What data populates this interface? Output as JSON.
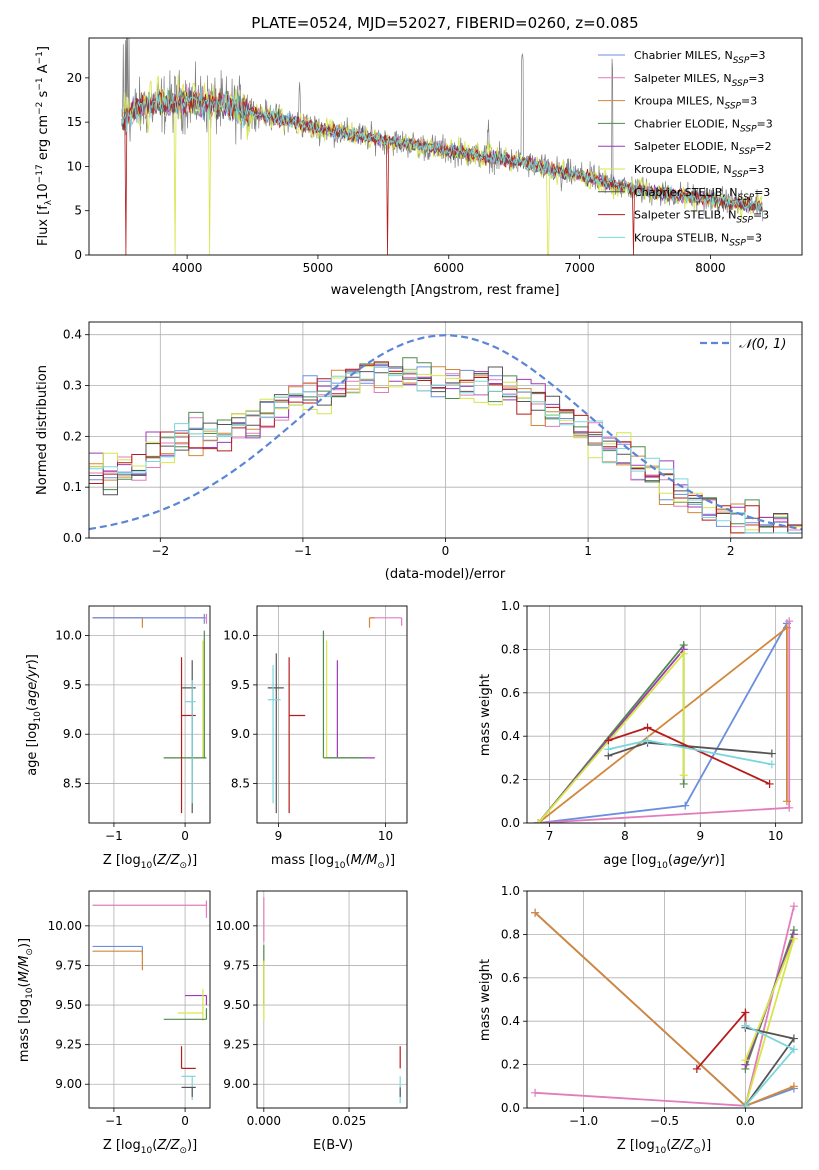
{
  "colors": {
    "c_ch_miles": "#6b8fe0",
    "c_sa_miles": "#e37bbd",
    "c_kr_miles": "#d2873a",
    "c_ch_elodie": "#4f8a4f",
    "c_sa_elodie": "#9b3cb5",
    "c_kr_elodie": "#d6e64a",
    "c_ch_stelib": "#555555",
    "c_sa_stelib": "#b51d1d",
    "c_kr_stelib": "#79d6dd",
    "data": "#808080",
    "normal": "#5b85d6"
  },
  "chart_data": [
    {
      "id": "spectrum",
      "type": "line",
      "title": "PLATE=0524, MJD=52027, FIBERID=0260, z=0.085",
      "xlabel": "wavelength [Angstrom, rest frame]",
      "ylabel": "Flux [fλ10⁻¹⁷ erg cm⁻² s⁻¹ A⁻¹]",
      "xlim": [
        3250,
        8700
      ],
      "ylim": [
        0,
        24.5
      ],
      "xticks": [
        4000,
        5000,
        6000,
        7000,
        8000
      ],
      "yticks": [
        0,
        5,
        10,
        15,
        20
      ],
      "legend_position": "upper right",
      "legend": [
        "Chabrier MILES, N_SSP=3",
        "Salpeter MILES, N_SSP=3",
        "Kroupa MILES, N_SSP=3",
        "Chabrier ELODIE, N_SSP=3",
        "Salpeter ELODIE, N_SSP=2",
        "Kroupa ELODIE, N_SSP=3",
        "Chabrier STELIB, N_SSP=3",
        "Salpeter STELIB, N_SSP=3",
        "Kroupa STELIB, N_SSP=3"
      ],
      "continuum": [
        [
          3500,
          15.5
        ],
        [
          3700,
          16.8
        ],
        [
          4000,
          17.5
        ],
        [
          4500,
          16.2
        ],
        [
          5000,
          14.3
        ],
        [
          5500,
          13.0
        ],
        [
          6000,
          11.8
        ],
        [
          6500,
          10.6
        ],
        [
          7000,
          8.9
        ],
        [
          7500,
          7.2
        ],
        [
          8000,
          6.3
        ],
        [
          8400,
          5.4
        ]
      ]
    },
    {
      "id": "residuals",
      "type": "line",
      "xlabel": "(data-model)/error",
      "ylabel": "Normed distribution",
      "xlim": [
        -2.5,
        2.5
      ],
      "ylim": [
        0,
        0.425
      ],
      "xticks": [
        -2,
        -1,
        0,
        1,
        2
      ],
      "yticks": [
        0.0,
        0.1,
        0.2,
        0.3,
        0.4
      ],
      "legend": [
        "𝒩(0, 1)"
      ],
      "bins": 50,
      "hist_envelope": [
        0.13,
        0.12,
        0.14,
        0.15,
        0.16,
        0.17,
        0.19,
        0.2,
        0.2,
        0.21,
        0.22,
        0.23,
        0.25,
        0.26,
        0.27,
        0.28,
        0.29,
        0.3,
        0.31,
        0.32,
        0.33,
        0.33,
        0.32,
        0.32,
        0.31,
        0.31,
        0.3,
        0.3,
        0.29,
        0.29,
        0.28,
        0.27,
        0.25,
        0.24,
        0.22,
        0.2,
        0.18,
        0.17,
        0.15,
        0.13,
        0.11,
        0.09,
        0.08,
        0.06,
        0.05,
        0.04,
        0.03,
        0.03,
        0.025,
        0.02
      ]
    },
    {
      "id": "age_vs_z",
      "type": "scatter",
      "xlabel": "Z [log₁₀(Z/Z⊙)]",
      "ylabel": "age  [log₁₀(age/yr)]",
      "xlim": [
        -1.35,
        0.35
      ],
      "ylim": [
        8.1,
        10.3
      ],
      "xticks": [
        -1,
        0
      ],
      "yticks": [
        8.5,
        9.0,
        9.5,
        10.0
      ]
    },
    {
      "id": "age_vs_mass",
      "type": "scatter",
      "xlabel": "mass [log₁₀(M/M⊙)]",
      "ylabel": "",
      "xlim": [
        8.8,
        10.2
      ],
      "ylim": [
        8.1,
        10.3
      ],
      "xticks": [
        9,
        10
      ],
      "yticks": [
        8.5,
        9.0,
        9.5,
        10.0
      ]
    },
    {
      "id": "weight_vs_age",
      "type": "line",
      "xlabel": "age  [log₁₀(age/yr)]",
      "ylabel": "mass weight",
      "xlim": [
        6.7,
        10.35
      ],
      "ylim": [
        0,
        1.0
      ],
      "xticks": [
        7,
        8,
        9,
        10
      ],
      "yticks": [
        0.0,
        0.2,
        0.4,
        0.6,
        0.8,
        1.0
      ],
      "series": [
        {
          "color": "c_ch_miles",
          "x": [
            6.85,
            8.8,
            10.15
          ],
          "y": [
            0.0,
            0.08,
            0.92
          ]
        },
        {
          "color": "c_sa_miles",
          "x": [
            6.85,
            10.18,
            10.18
          ],
          "y": [
            0.0,
            0.07,
            0.93
          ]
        },
        {
          "color": "c_kr_miles",
          "x": [
            6.85,
            10.15,
            10.15
          ],
          "y": [
            0.0,
            0.9,
            0.1
          ]
        },
        {
          "color": "c_ch_elodie",
          "x": [
            6.85,
            8.78,
            8.78
          ],
          "y": [
            0.0,
            0.82,
            0.18
          ]
        },
        {
          "color": "c_sa_elodie",
          "x": [
            6.85,
            8.78
          ],
          "y": [
            0.0,
            0.8
          ]
        },
        {
          "color": "c_kr_elodie",
          "x": [
            6.85,
            8.78,
            8.78
          ],
          "y": [
            0.0,
            0.78,
            0.22
          ]
        },
        {
          "color": "c_ch_stelib",
          "x": [
            7.78,
            8.3,
            9.95
          ],
          "y": [
            0.31,
            0.37,
            0.32
          ]
        },
        {
          "color": "c_sa_stelib",
          "x": [
            7.78,
            8.3,
            9.92
          ],
          "y": [
            0.38,
            0.44,
            0.18
          ]
        },
        {
          "color": "c_kr_stelib",
          "x": [
            7.78,
            8.3,
            9.95
          ],
          "y": [
            0.34,
            0.38,
            0.27
          ]
        }
      ]
    },
    {
      "id": "mass_vs_z",
      "type": "scatter",
      "xlabel": "Z [log₁₀(Z/Z⊙)]",
      "ylabel": "mass [log₁₀(M/M⊙)]",
      "xlim": [
        -1.35,
        0.35
      ],
      "ylim": [
        8.85,
        10.22
      ],
      "xticks": [
        -1,
        0
      ],
      "yticks": [
        9.0,
        9.25,
        9.5,
        9.75,
        10.0
      ]
    },
    {
      "id": "mass_vs_ebv",
      "type": "scatter",
      "xlabel": "E(B-V)",
      "ylabel": "",
      "xlim": [
        -0.002,
        0.042
      ],
      "ylim": [
        8.85,
        10.22
      ],
      "xticks": [
        0.0,
        0.025
      ],
      "yticks": [
        9.0,
        9.25,
        9.5,
        9.75,
        10.0
      ]
    },
    {
      "id": "weight_vs_z",
      "type": "line",
      "xlabel": "Z [log₁₀(Z/Z⊙)]",
      "ylabel": "mass weight",
      "xlim": [
        -1.35,
        0.35
      ],
      "ylim": [
        0,
        1.0
      ],
      "xticks": [
        -1.0,
        -0.5,
        0.0
      ],
      "yticks": [
        0.0,
        0.2,
        0.4,
        0.6,
        0.8,
        1.0
      ],
      "series": [
        {
          "color": "c_ch_miles",
          "x": [
            -1.3,
            0.0,
            0.3
          ],
          "y": [
            0.9,
            0.01,
            0.09
          ]
        },
        {
          "color": "c_sa_miles",
          "x": [
            -1.3,
            0.0,
            0.3
          ],
          "y": [
            0.07,
            0.01,
            0.93
          ]
        },
        {
          "color": "c_kr_miles",
          "x": [
            -1.3,
            0.0,
            0.3
          ],
          "y": [
            0.9,
            0.01,
            0.1
          ]
        },
        {
          "color": "c_ch_elodie",
          "x": [
            0.0,
            0.3
          ],
          "y": [
            0.18,
            0.82
          ]
        },
        {
          "color": "c_sa_elodie",
          "x": [
            0.0,
            0.3
          ],
          "y": [
            0.2,
            0.8
          ]
        },
        {
          "color": "c_kr_elodie",
          "x": [
            0.0,
            0.3,
            0.0
          ],
          "y": [
            0.22,
            0.78,
            0.01
          ]
        },
        {
          "color": "c_ch_stelib",
          "x": [
            0.0,
            0.3,
            0.0
          ],
          "y": [
            0.37,
            0.32,
            0.01
          ]
        },
        {
          "color": "c_sa_stelib",
          "x": [
            -0.3,
            0.0,
            0.0
          ],
          "y": [
            0.18,
            0.44,
            0.38
          ]
        },
        {
          "color": "c_kr_stelib",
          "x": [
            0.0,
            0.3,
            0.0
          ],
          "y": [
            0.38,
            0.27,
            0.01
          ]
        }
      ]
    }
  ]
}
